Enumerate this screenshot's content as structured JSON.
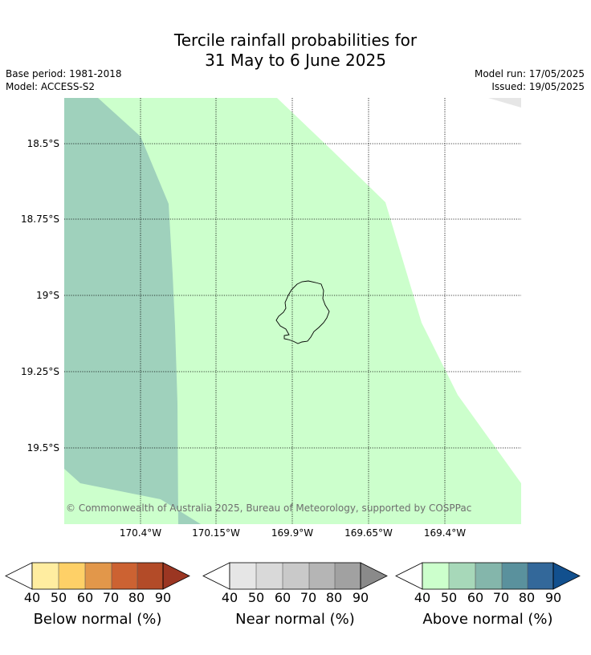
{
  "title": {
    "line1": "Tercile rainfall probabilities for",
    "line2": "31 May to 6 June 2025"
  },
  "meta": {
    "base_period": "Base period: 1981-2018",
    "model": "Model: ACCESS-S2",
    "model_run": "Model run: 17/05/2025",
    "issued": "Issued: 19/05/2025"
  },
  "map": {
    "lat_labels": [
      "18.5°S",
      "18.75°S",
      "19°S",
      "19.25°S",
      "19.5°S"
    ],
    "lon_labels": [
      "170.4°W",
      "170.15°W",
      "169.9°W",
      "169.65°W",
      "169.4°W"
    ],
    "copyright": "© Commonwealth of Australia 2025, Bureau of Meteorology, supported by COSPPac",
    "region_colors": {
      "above_50": "#ccffcc",
      "above_60": "#9fd1bc",
      "near_40": "#e6e6e6"
    }
  },
  "colorbars": [
    {
      "label": "Below normal (%)",
      "ticks": [
        "40",
        "50",
        "60",
        "70",
        "80",
        "90"
      ],
      "colors": [
        "#ffeda0",
        "#fed067",
        "#e2974a",
        "#cc6232",
        "#b34b28",
        "#9b3622"
      ]
    },
    {
      "label": "Near normal (%)",
      "ticks": [
        "40",
        "50",
        "60",
        "70",
        "80",
        "90"
      ],
      "colors": [
        "#e6e6e6",
        "#d9d9d9",
        "#c9c9c9",
        "#b5b5b5",
        "#a1a1a1",
        "#8a8a8a"
      ]
    },
    {
      "label": "Above normal (%)",
      "ticks": [
        "40",
        "50",
        "60",
        "70",
        "80",
        "90"
      ],
      "colors": [
        "#ccffcc",
        "#a7d8b9",
        "#84b6ab",
        "#5a919d",
        "#33689a",
        "#12508e"
      ]
    }
  ]
}
